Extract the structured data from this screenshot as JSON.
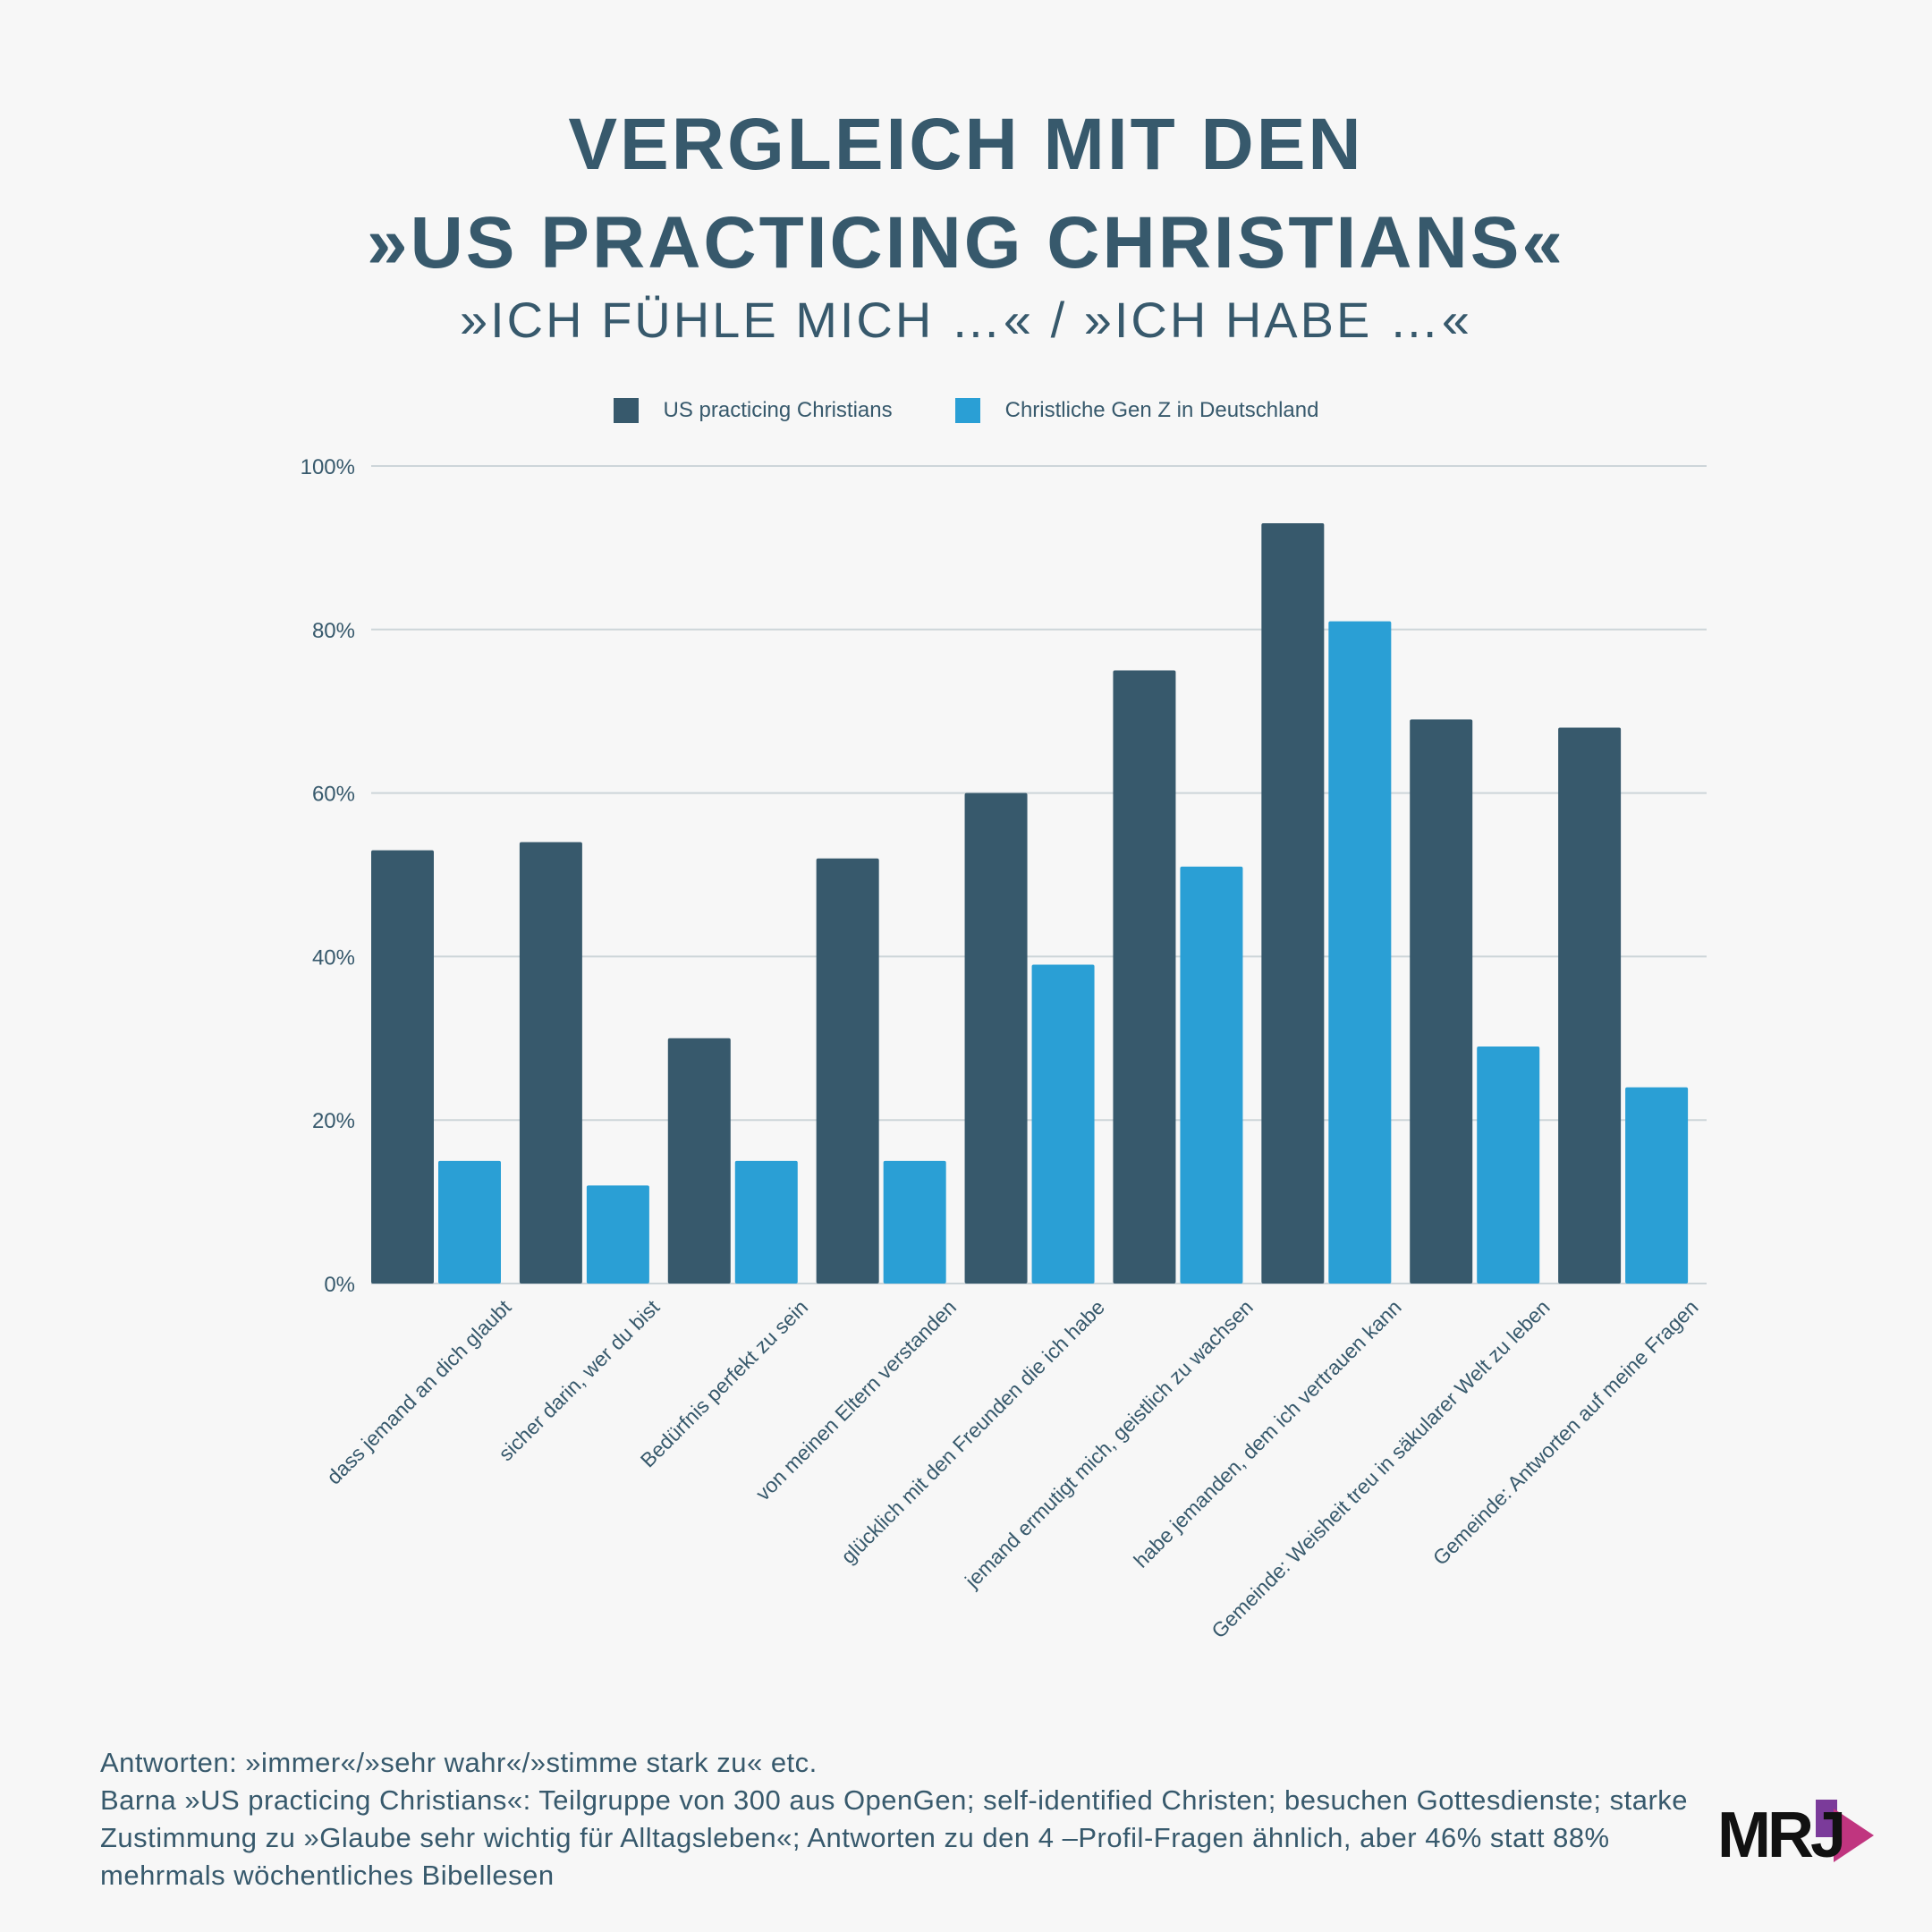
{
  "header": {
    "title_line1": "VERGLEICH MIT DEN",
    "title_line2": "»US PRACTICING CHRISTIANS«",
    "subtitle": "»ICH FÜHLE MICH …« / »ICH HABE …«"
  },
  "colors": {
    "series1": "#37596c",
    "series2": "#2a9fd5",
    "grid": "#cdd5d9",
    "text": "#37596c",
    "logo_accent": "#c0357f"
  },
  "chart_data": {
    "type": "bar",
    "title": "VERGLEICH MIT DEN »US PRACTICING CHRISTIANS«",
    "subtitle": "»ICH FÜHLE MICH …« / »ICH HABE …«",
    "xlabel": "",
    "ylabel": "",
    "ylim": [
      0,
      100
    ],
    "yticks": [
      0,
      20,
      40,
      60,
      80,
      100
    ],
    "ytick_labels": [
      "0%",
      "20%",
      "40%",
      "60%",
      "80%",
      "100%"
    ],
    "grid": true,
    "legend_position": "top-center",
    "categories": [
      "dass jemand an dich glaubt",
      "sicher darin, wer du bist",
      "Bedürfnis perfekt zu sein",
      "von meinen Eltern verstanden",
      "glücklich mit den Freunden die ich habe",
      "jemand ermutigt mich, geistlich zu wachsen",
      "habe jemanden, dem ich vertrauen kann",
      "Gemeinde: Weisheit treu in säkularer Welt zu leben",
      "Gemeinde: Antworten auf meine Fragen"
    ],
    "series": [
      {
        "name": "US practicing Christians",
        "values": [
          53,
          54,
          30,
          52,
          60,
          75,
          93,
          69,
          68
        ]
      },
      {
        "name": "Christliche Gen Z in Deutschland",
        "values": [
          15,
          12,
          15,
          15,
          39,
          51,
          81,
          29,
          24
        ]
      }
    ]
  },
  "footer": {
    "line1": "Antworten: »immer«/»sehr wahr«/»stimme stark zu« etc.",
    "line2": "Barna »US practicing Christians«: Teilgruppe von 300 aus OpenGen; self-identified Christen; besuchen Gottesdienste; starke Zustimmung zu »Glaube sehr wichtig für Alltagsleben«; Antworten zu den 4 –Profil-Fragen ähnlich, aber 46% statt 88% mehrmals wöchentliches Bibellesen"
  },
  "logo": {
    "text": "MRJ"
  }
}
